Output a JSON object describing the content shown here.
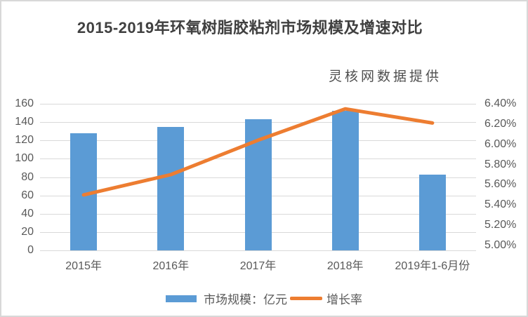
{
  "page": {
    "source_note": "灵核网数据提供"
  },
  "chart_data": {
    "type": "bar",
    "combo": "bar+line",
    "title": "2015-2019年环氧树脂胶粘剂市场规模及增速对比",
    "categories": [
      "2015年",
      "2016年",
      "2017年",
      "2018年",
      "2019年1-6月份"
    ],
    "series": [
      {
        "name": "市场规模：亿元",
        "type": "bar",
        "axis": "left",
        "color": "#5B9BD5",
        "values": [
          128,
          135,
          143,
          152,
          83
        ]
      },
      {
        "name": "增长率",
        "type": "line",
        "axis": "right",
        "color": "#ED7D31",
        "unit": "%",
        "values": [
          5.5,
          5.7,
          6.04,
          6.35,
          6.21
        ]
      }
    ],
    "left_axis": {
      "min": 0,
      "max": 160,
      "step": 20,
      "ticks": [
        "160",
        "140",
        "120",
        "100",
        "80",
        "60",
        "40",
        "20",
        "0"
      ]
    },
    "right_axis": {
      "min": 5.0,
      "max": 6.4,
      "step": 0.2,
      "ticks": [
        "6.40%",
        "6.20%",
        "6.00%",
        "5.80%",
        "5.60%",
        "5.40%",
        "5.20%",
        "5.00%"
      ]
    },
    "grid": true,
    "gridline_color": "#d9d9d9",
    "legend_position": "bottom",
    "text_color": "#595959",
    "title_color": "#404040"
  }
}
